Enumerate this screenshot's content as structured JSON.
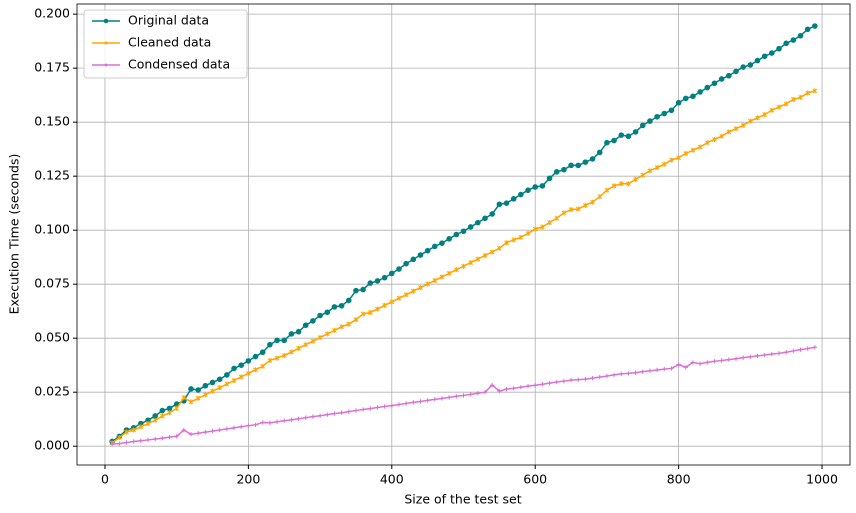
{
  "chart_data": {
    "type": "line",
    "xlabel": "Size of the test set",
    "ylabel": "Execution Time (seconds)",
    "x": [
      10,
      20,
      30,
      40,
      50,
      60,
      70,
      80,
      90,
      100,
      110,
      120,
      130,
      140,
      150,
      160,
      170,
      180,
      190,
      200,
      210,
      220,
      230,
      240,
      250,
      260,
      270,
      280,
      290,
      300,
      310,
      320,
      330,
      340,
      350,
      360,
      370,
      380,
      390,
      400,
      410,
      420,
      430,
      440,
      450,
      460,
      470,
      480,
      490,
      500,
      510,
      520,
      530,
      540,
      550,
      560,
      570,
      580,
      590,
      600,
      610,
      620,
      630,
      640,
      650,
      660,
      670,
      680,
      690,
      700,
      710,
      720,
      730,
      740,
      750,
      760,
      770,
      780,
      790,
      800,
      810,
      820,
      830,
      840,
      850,
      860,
      870,
      880,
      890,
      900,
      910,
      920,
      930,
      940,
      950,
      960,
      970,
      980,
      990
    ],
    "series": [
      {
        "name": "Original data",
        "color": "#008080",
        "marker": "o",
        "values": [
          0.0022,
          0.0045,
          0.0075,
          0.0085,
          0.0105,
          0.012,
          0.014,
          0.0165,
          0.0175,
          0.0195,
          0.021,
          0.0265,
          0.026,
          0.028,
          0.0295,
          0.031,
          0.033,
          0.036,
          0.0375,
          0.0395,
          0.0415,
          0.0435,
          0.047,
          0.049,
          0.049,
          0.052,
          0.053,
          0.056,
          0.058,
          0.0605,
          0.062,
          0.0645,
          0.065,
          0.0675,
          0.072,
          0.0725,
          0.0755,
          0.0765,
          0.078,
          0.08,
          0.082,
          0.0845,
          0.0865,
          0.0885,
          0.0905,
          0.0925,
          0.094,
          0.096,
          0.098,
          0.0995,
          0.1015,
          0.1035,
          0.1055,
          0.1075,
          0.112,
          0.1125,
          0.1145,
          0.1165,
          0.1185,
          0.12,
          0.1205,
          0.124,
          0.127,
          0.128,
          0.13,
          0.13,
          0.1315,
          0.133,
          0.136,
          0.1405,
          0.1415,
          0.144,
          0.1435,
          0.1455,
          0.1485,
          0.1505,
          0.1525,
          0.154,
          0.1555,
          0.159,
          0.161,
          0.162,
          0.164,
          0.166,
          0.168,
          0.17,
          0.1715,
          0.1735,
          0.1755,
          0.1765,
          0.1785,
          0.1805,
          0.182,
          0.184,
          0.1865,
          0.188,
          0.19,
          0.193,
          0.1945
        ]
      },
      {
        "name": "Cleaned data",
        "color": "#ffa500",
        "marker": "*",
        "values": [
          0.0015,
          0.004,
          0.0065,
          0.0075,
          0.009,
          0.0105,
          0.012,
          0.014,
          0.0155,
          0.0175,
          0.0225,
          0.0205,
          0.0222,
          0.0238,
          0.0255,
          0.0271,
          0.0288,
          0.0304,
          0.0321,
          0.0337,
          0.0354,
          0.037,
          0.0397,
          0.0408,
          0.042,
          0.0436,
          0.0453,
          0.047,
          0.0486,
          0.0503,
          0.052,
          0.0536,
          0.0553,
          0.0565,
          0.0586,
          0.0612,
          0.0619,
          0.0635,
          0.0652,
          0.0668,
          0.0685,
          0.0701,
          0.0718,
          0.0734,
          0.0751,
          0.0767,
          0.0784,
          0.08,
          0.0817,
          0.0833,
          0.085,
          0.0866,
          0.0883,
          0.0899,
          0.0916,
          0.0942,
          0.0955,
          0.0967,
          0.0985,
          0.1005,
          0.1015,
          0.1035,
          0.1055,
          0.108,
          0.1095,
          0.1098,
          0.1115,
          0.113,
          0.1155,
          0.1185,
          0.1205,
          0.1215,
          0.1215,
          0.1235,
          0.1255,
          0.1275,
          0.129,
          0.1305,
          0.1325,
          0.1335,
          0.1355,
          0.137,
          0.1385,
          0.1405,
          0.142,
          0.1435,
          0.1455,
          0.147,
          0.1485,
          0.1505,
          0.152,
          0.1535,
          0.1555,
          0.157,
          0.1585,
          0.1605,
          0.1615,
          0.1635,
          0.1645
        ]
      },
      {
        "name": "Condensed data",
        "color": "#da70d6",
        "marker": "+",
        "values": [
          0.001,
          0.0012,
          0.0017,
          0.0022,
          0.0025,
          0.0029,
          0.0033,
          0.0037,
          0.0042,
          0.0046,
          0.0075,
          0.0055,
          0.006,
          0.0065,
          0.007,
          0.0075,
          0.008,
          0.0085,
          0.009,
          0.0095,
          0.0099,
          0.011,
          0.0108,
          0.0113,
          0.0118,
          0.0122,
          0.0127,
          0.0132,
          0.0137,
          0.0141,
          0.0146,
          0.0151,
          0.0155,
          0.016,
          0.0165,
          0.017,
          0.0174,
          0.0179,
          0.0184,
          0.0188,
          0.0193,
          0.0198,
          0.0203,
          0.0207,
          0.0212,
          0.0217,
          0.0221,
          0.0226,
          0.0231,
          0.0235,
          0.024,
          0.0245,
          0.025,
          0.0283,
          0.0255,
          0.0264,
          0.0268,
          0.0273,
          0.0278,
          0.0282,
          0.0287,
          0.0292,
          0.0297,
          0.0301,
          0.0306,
          0.0308,
          0.031,
          0.0315,
          0.032,
          0.0325,
          0.033,
          0.0335,
          0.0337,
          0.034,
          0.0345,
          0.0349,
          0.0353,
          0.0357,
          0.036,
          0.0378,
          0.0365,
          0.0388,
          0.0382,
          0.0388,
          0.0393,
          0.0397,
          0.0401,
          0.0405,
          0.041,
          0.0414,
          0.0418,
          0.0422,
          0.0426,
          0.043,
          0.0435,
          0.0441,
          0.0447,
          0.0452,
          0.0458
        ]
      }
    ],
    "xlim": [
      -39,
      1039
    ],
    "ylim": [
      -0.0087,
      0.2047
    ],
    "xticks": [
      0,
      200,
      400,
      600,
      800,
      1000
    ],
    "yticks": [
      {
        "value": 0,
        "label": "0.000"
      },
      {
        "value": 0.025,
        "label": "0.025"
      },
      {
        "value": 0.05,
        "label": "0.050"
      },
      {
        "value": 0.075,
        "label": "0.075"
      },
      {
        "value": 0.1,
        "label": "0.100"
      },
      {
        "value": 0.125,
        "label": "0.125"
      },
      {
        "value": 0.15,
        "label": "0.150"
      },
      {
        "value": 0.175,
        "label": "0.175"
      },
      {
        "value": 0.2,
        "label": "0.200"
      }
    ],
    "grid": true,
    "legend": "upper left"
  }
}
